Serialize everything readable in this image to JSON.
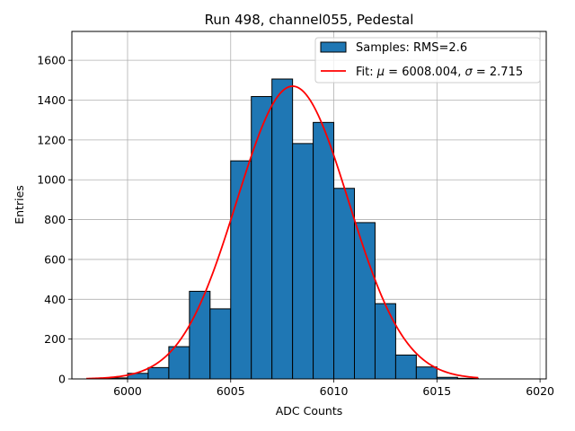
{
  "chart_data": {
    "type": "bar",
    "title": "Run 498, channel055, Pedestal",
    "xlabel": "ADC Counts",
    "ylabel": "Entries",
    "xlim": [
      5997.3,
      6020.3
    ],
    "ylim": [
      0,
      1745
    ],
    "xticks": [
      6000,
      6005,
      6010,
      6015,
      6020
    ],
    "yticks": [
      0,
      200,
      400,
      600,
      800,
      1000,
      1200,
      1400,
      1600
    ],
    "grid": true,
    "legend_position": "top-right",
    "histogram": {
      "name": "Samples: RMS=2.6",
      "color": "#1f77b4",
      "edge_color": "#000000",
      "bin_width": 1,
      "bin_starts": [
        5999,
        6000,
        6001,
        6002,
        6003,
        6004,
        6005,
        6006,
        6007,
        6008,
        6009,
        6010,
        6011,
        6012,
        6013,
        6014,
        6015,
        6016
      ],
      "values": [
        5,
        28,
        57,
        162,
        440,
        352,
        1095,
        1418,
        1506,
        1182,
        1288,
        957,
        785,
        378,
        120,
        60,
        8,
        3
      ]
    },
    "fit": {
      "name": "Fit: μ = 6008.004, σ = 2.715",
      "legend_prefix": "Fit: ",
      "mu_symbol": "μ",
      "mu_value": " = 6008.004, ",
      "sigma_symbol": "σ",
      "sigma_value": " = 2.715",
      "color": "#ff0000",
      "mu": 6008.004,
      "sigma": 2.715,
      "amplitude": 1470,
      "x_range": [
        5998,
        6017
      ]
    }
  }
}
